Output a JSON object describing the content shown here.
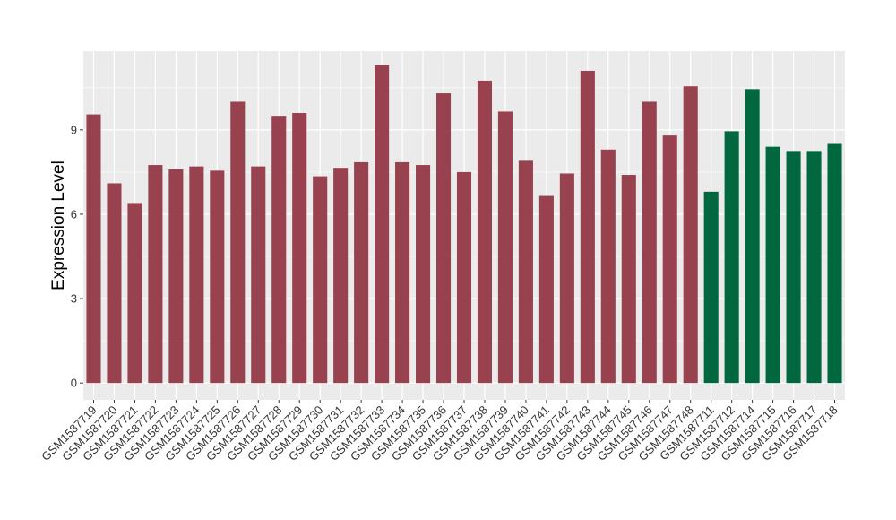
{
  "chart_data": {
    "type": "bar",
    "ylabel": "Expression Level",
    "xlabel": "",
    "ylim": [
      -0.6,
      11.8
    ],
    "yticks": [
      0,
      3,
      6,
      9
    ],
    "grid": true,
    "legend": "none",
    "colors": {
      "group_a": "#99424f",
      "group_b": "#00673f",
      "panel_bg": "#ebebeb",
      "grid": "#ffffff"
    },
    "categories": [
      "GSM1587719",
      "GSM1587720",
      "GSM1587721",
      "GSM1587722",
      "GSM1587723",
      "GSM1587724",
      "GSM1587725",
      "GSM1587726",
      "GSM1587727",
      "GSM1587728",
      "GSM1587729",
      "GSM1587730",
      "GSM1587731",
      "GSM1587732",
      "GSM1587733",
      "GSM1587734",
      "GSM1587735",
      "GSM1587736",
      "GSM1587737",
      "GSM1587738",
      "GSM1587739",
      "GSM1587740",
      "GSM1587741",
      "GSM1587742",
      "GSM1587743",
      "GSM1587744",
      "GSM1587745",
      "GSM1587746",
      "GSM1587747",
      "GSM1587748",
      "GSM1587711",
      "GSM1587712",
      "GSM1587714",
      "GSM1587715",
      "GSM1587716",
      "GSM1587717",
      "GSM1587718"
    ],
    "values": [
      9.55,
      7.1,
      6.4,
      7.75,
      7.6,
      7.7,
      7.55,
      10.0,
      7.7,
      9.5,
      9.6,
      7.35,
      7.65,
      7.85,
      11.3,
      7.85,
      7.75,
      10.3,
      7.5,
      10.75,
      9.65,
      7.9,
      6.65,
      7.45,
      11.1,
      8.3,
      7.4,
      10.0,
      8.8,
      10.55,
      6.8,
      8.95,
      10.45,
      8.4,
      8.25,
      8.25,
      8.5
    ],
    "groups": [
      "a",
      "a",
      "a",
      "a",
      "a",
      "a",
      "a",
      "a",
      "a",
      "a",
      "a",
      "a",
      "a",
      "a",
      "a",
      "a",
      "a",
      "a",
      "a",
      "a",
      "a",
      "a",
      "a",
      "a",
      "a",
      "a",
      "a",
      "a",
      "a",
      "a",
      "b",
      "b",
      "b",
      "b",
      "b",
      "b",
      "b"
    ]
  }
}
